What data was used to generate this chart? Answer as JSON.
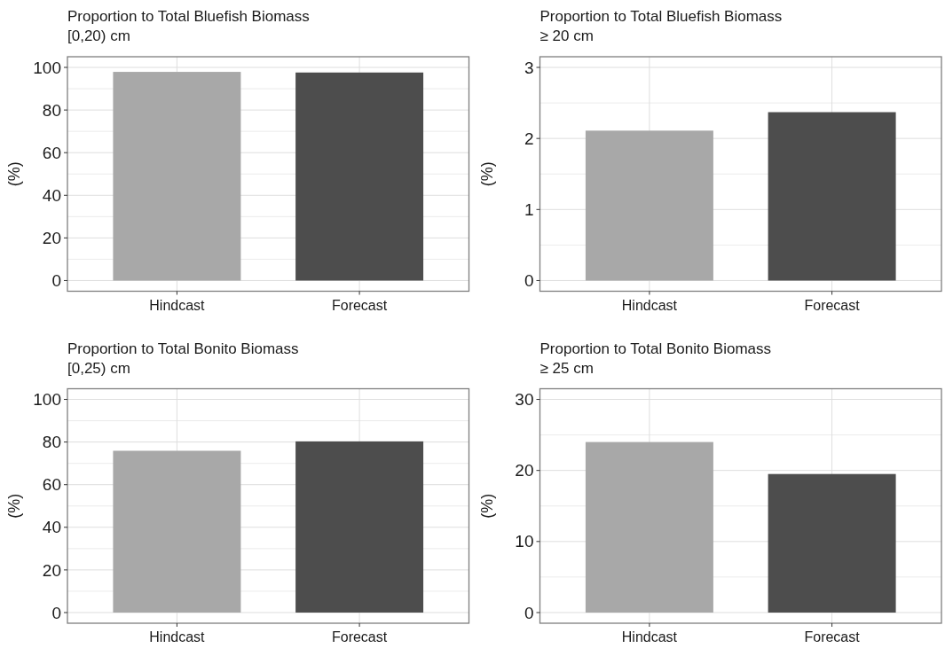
{
  "chart_data": [
    {
      "type": "bar",
      "title": "Proportion to Total Bluefish Biomass",
      "subtitle": "[0,20) cm",
      "ylabel": "(%)",
      "categories": [
        "Hindcast",
        "Forecast"
      ],
      "values": [
        97.9,
        97.6
      ],
      "colors": [
        "#a8a8a8",
        "#4d4d4d"
      ],
      "ylim": [
        -5,
        105
      ],
      "yticks": [
        0,
        {
          "value": 10,
          "label": null
        },
        20,
        {
          "value": 30,
          "label": null
        },
        40,
        {
          "value": 50,
          "label": null
        },
        60,
        {
          "value": 70,
          "label": null
        },
        80,
        {
          "value": 90,
          "label": null
        },
        100
      ],
      "grid": true
    },
    {
      "type": "bar",
      "title": "Proportion to Total Bluefish Biomass",
      "subtitle": "≥ 20 cm",
      "ylabel": "(%)",
      "categories": [
        "Hindcast",
        "Forecast"
      ],
      "values": [
        2.11,
        2.37
      ],
      "colors": [
        "#a8a8a8",
        "#4d4d4d"
      ],
      "ylim": [
        -0.15,
        3.15
      ],
      "yticks": [
        0,
        {
          "value": 0.5,
          "label": null
        },
        1,
        {
          "value": 1.5,
          "label": null
        },
        2,
        {
          "value": 2.5,
          "label": null
        },
        3
      ],
      "grid": true
    },
    {
      "type": "bar",
      "title": "Proportion to Total Bonito Biomass",
      "subtitle": "[0,25) cm",
      "ylabel": "(%)",
      "categories": [
        "Hindcast",
        "Forecast"
      ],
      "values": [
        75.9,
        80.3
      ],
      "colors": [
        "#a8a8a8",
        "#4d4d4d"
      ],
      "ylim": [
        -5,
        105
      ],
      "yticks": [
        0,
        {
          "value": 10,
          "label": null
        },
        20,
        {
          "value": 30,
          "label": null
        },
        40,
        {
          "value": 50,
          "label": null
        },
        60,
        {
          "value": 70,
          "label": null
        },
        80,
        {
          "value": 90,
          "label": null
        },
        100
      ],
      "grid": true
    },
    {
      "type": "bar",
      "title": "Proportion to Total Bonito Biomass",
      "subtitle": "≥ 25 cm",
      "ylabel": "(%)",
      "categories": [
        "Hindcast",
        "Forecast"
      ],
      "values": [
        24.0,
        19.5
      ],
      "colors": [
        "#a8a8a8",
        "#4d4d4d"
      ],
      "ylim": [
        -1.5,
        31.5
      ],
      "yticks": [
        0,
        {
          "value": 5,
          "label": null
        },
        10,
        {
          "value": 15,
          "label": null
        },
        20,
        {
          "value": 25,
          "label": null
        },
        30
      ],
      "grid": true
    }
  ]
}
